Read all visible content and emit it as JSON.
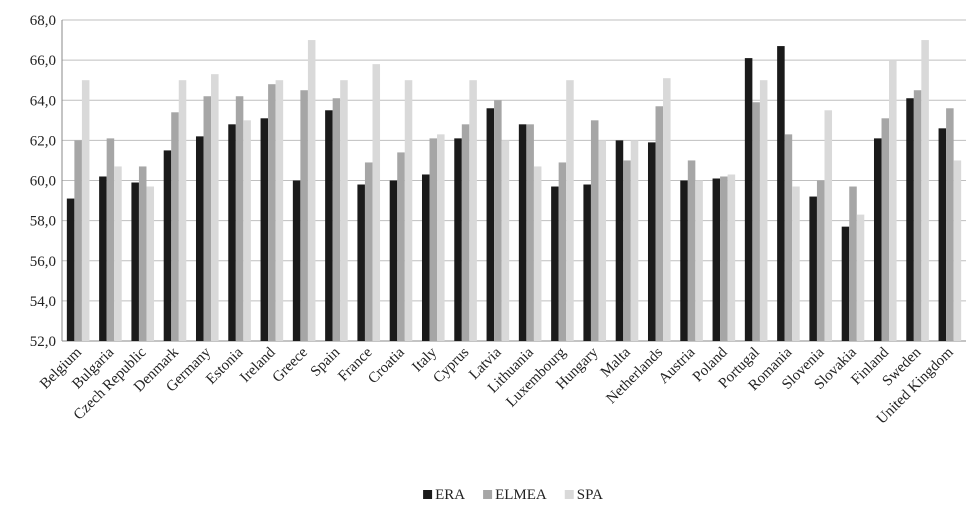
{
  "chart_data": {
    "type": "bar",
    "categories": [
      "Belgium",
      "Bulgaria",
      "Czech Republic",
      "Denmark",
      "Germany",
      "Estonia",
      "Ireland",
      "Greece",
      "Spain",
      "France",
      "Croatia",
      "Italy",
      "Cyprus",
      "Latvia",
      "Lithuania",
      "Luxembourg",
      "Hungary",
      "Malta",
      "Netherlands",
      "Austria",
      "Poland",
      "Portugal",
      "Romania",
      "Slovenia",
      "Slovakia",
      "Finland",
      "Sweden",
      "United Kingdom"
    ],
    "series": [
      {
        "name": "ERA",
        "color": "#1a1a1a",
        "values": [
          59.1,
          60.2,
          59.9,
          61.5,
          62.2,
          62.8,
          63.1,
          60.0,
          63.5,
          59.8,
          60.0,
          60.3,
          62.1,
          63.6,
          62.8,
          59.7,
          59.8,
          62.0,
          61.9,
          60.0,
          60.1,
          66.1,
          66.7,
          59.2,
          57.7,
          62.1,
          64.1,
          62.6
        ]
      },
      {
        "name": "ELMEA",
        "color": "#a6a6a6",
        "values": [
          62.0,
          62.1,
          60.7,
          63.4,
          64.2,
          64.2,
          64.8,
          64.5,
          64.1,
          60.9,
          61.4,
          62.1,
          62.8,
          64.0,
          62.8,
          60.9,
          63.0,
          61.0,
          63.7,
          61.0,
          60.2,
          63.9,
          62.3,
          60.0,
          59.7,
          63.1,
          64.5,
          63.6
        ]
      },
      {
        "name": "SPA",
        "color": "#d9d9d9",
        "values": [
          65.0,
          60.7,
          59.7,
          65.0,
          65.3,
          63.0,
          65.0,
          67.0,
          65.0,
          65.8,
          65.0,
          62.3,
          65.0,
          62.0,
          60.7,
          65.0,
          62.0,
          62.0,
          65.1,
          60.0,
          60.3,
          65.0,
          59.7,
          63.5,
          58.3,
          66.0,
          67.0,
          61.0
        ]
      }
    ],
    "ylim": [
      52,
      68
    ],
    "yticks": [
      {
        "value": 52,
        "label": "52,0"
      },
      {
        "value": 54,
        "label": "54,0"
      },
      {
        "value": 56,
        "label": "56,0"
      },
      {
        "value": 58,
        "label": "58,0"
      },
      {
        "value": 60,
        "label": "60,0"
      },
      {
        "value": 62,
        "label": "62,0"
      },
      {
        "value": 64,
        "label": "64,0"
      },
      {
        "value": 66,
        "label": "66,0"
      },
      {
        "value": 68,
        "label": "68,0"
      }
    ],
    "grid": true,
    "legend": "bottom"
  }
}
